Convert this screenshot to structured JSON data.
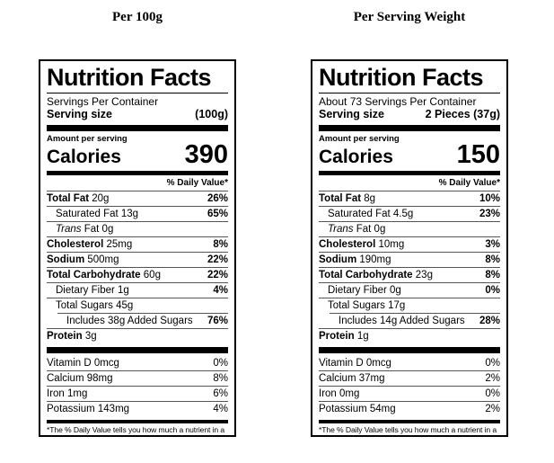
{
  "colors": {
    "background": "#ffffff",
    "text": "#000000",
    "label_border": "#000000",
    "thick_bar": "#000000",
    "hairline": "#555555"
  },
  "columns": [
    {
      "title": "Per 100g",
      "label": {
        "heading": "Nutrition Facts",
        "servings_per_container": "Servings Per Container",
        "serving_size_label": "Serving size",
        "serving_size_value": "(100g)",
        "amount_per_serving": "Amount per serving",
        "calories_label": "Calories",
        "calories_value": "390",
        "daily_value_header": "% Daily Value*",
        "nutrient_rows": [
          {
            "bold": "Total Fat",
            "text": " 20g",
            "dv": "26%",
            "dv_bold": true,
            "indent": 0
          },
          {
            "text": "Saturated Fat 13g",
            "dv": "65%",
            "dv_bold": true,
            "indent": 1
          },
          {
            "italic": "Trans",
            "text": " Fat 0g",
            "dv": "",
            "indent": 1
          },
          {
            "bold": "Cholesterol",
            "text": " 25mg",
            "dv": "8%",
            "dv_bold": true,
            "indent": 0
          },
          {
            "bold": "Sodium",
            "text": " 500mg",
            "dv": "22%",
            "dv_bold": true,
            "indent": 0
          },
          {
            "bold": "Total Carbohydrate",
            "text": " 60g",
            "dv": "22%",
            "dv_bold": true,
            "indent": 0
          },
          {
            "text": "Dietary Fiber 1g",
            "dv": "4%",
            "dv_bold": true,
            "indent": 1
          },
          {
            "text": "Total Sugars 45g",
            "dv": "",
            "indent": 1
          },
          {
            "text": "Includes 38g Added Sugars",
            "dv": "76%",
            "dv_bold": true,
            "indent": 2,
            "rule_indent": true
          },
          {
            "bold": "Protein",
            "text": " 3g",
            "dv": "",
            "indent": 0
          }
        ],
        "vitamin_rows": [
          {
            "text": "Vitamin D 0mcg",
            "dv": "0%"
          },
          {
            "text": "Calcium 98mg",
            "dv": "8%"
          },
          {
            "text": "Iron 1mg",
            "dv": "6%"
          },
          {
            "text": "Potassium 143mg",
            "dv": "4%"
          }
        ],
        "footnote": "*The % Daily Value tells you how much a nutrient in a serving of food contributes to a daily diet. 2,000 calories a day is used for general nutrition advice."
      }
    },
    {
      "title": "Per Serving Weight",
      "label": {
        "heading": "Nutrition Facts",
        "servings_per_container": "About 73 Servings Per Container",
        "serving_size_label": "Serving size",
        "serving_size_value": "2 Pieces (37g)",
        "amount_per_serving": "Amount per serving",
        "calories_label": "Calories",
        "calories_value": "150",
        "daily_value_header": "% Daily Value*",
        "nutrient_rows": [
          {
            "bold": "Total Fat",
            "text": " 8g",
            "dv": "10%",
            "dv_bold": true,
            "indent": 0
          },
          {
            "text": "Saturated Fat 4.5g",
            "dv": "23%",
            "dv_bold": true,
            "indent": 1
          },
          {
            "italic": "Trans",
            "text": " Fat 0g",
            "dv": "",
            "indent": 1
          },
          {
            "bold": "Cholesterol",
            "text": " 10mg",
            "dv": "3%",
            "dv_bold": true,
            "indent": 0
          },
          {
            "bold": "Sodium",
            "text": " 190mg",
            "dv": "8%",
            "dv_bold": true,
            "indent": 0
          },
          {
            "bold": "Total Carbohydrate",
            "text": " 23g",
            "dv": "8%",
            "dv_bold": true,
            "indent": 0
          },
          {
            "text": "Dietary Fiber 0g",
            "dv": "0%",
            "dv_bold": true,
            "indent": 1
          },
          {
            "text": "Total Sugars 17g",
            "dv": "",
            "indent": 1
          },
          {
            "text": "Includes 14g Added Sugars",
            "dv": "28%",
            "dv_bold": true,
            "indent": 2,
            "rule_indent": true
          },
          {
            "bold": "Protein",
            "text": " 1g",
            "dv": "",
            "indent": 0
          }
        ],
        "vitamin_rows": [
          {
            "text": "Vitamin D 0mcg",
            "dv": "0%"
          },
          {
            "text": "Calcium 37mg",
            "dv": "2%"
          },
          {
            "text": "Iron 0mg",
            "dv": "0%"
          },
          {
            "text": "Potassium 54mg",
            "dv": "2%"
          }
        ],
        "footnote": "*The % Daily Value tells you how much a nutrient in a serving of food contributes to a daily diet. 2,000 calories a day is used for general nutrition advice."
      }
    }
  ]
}
